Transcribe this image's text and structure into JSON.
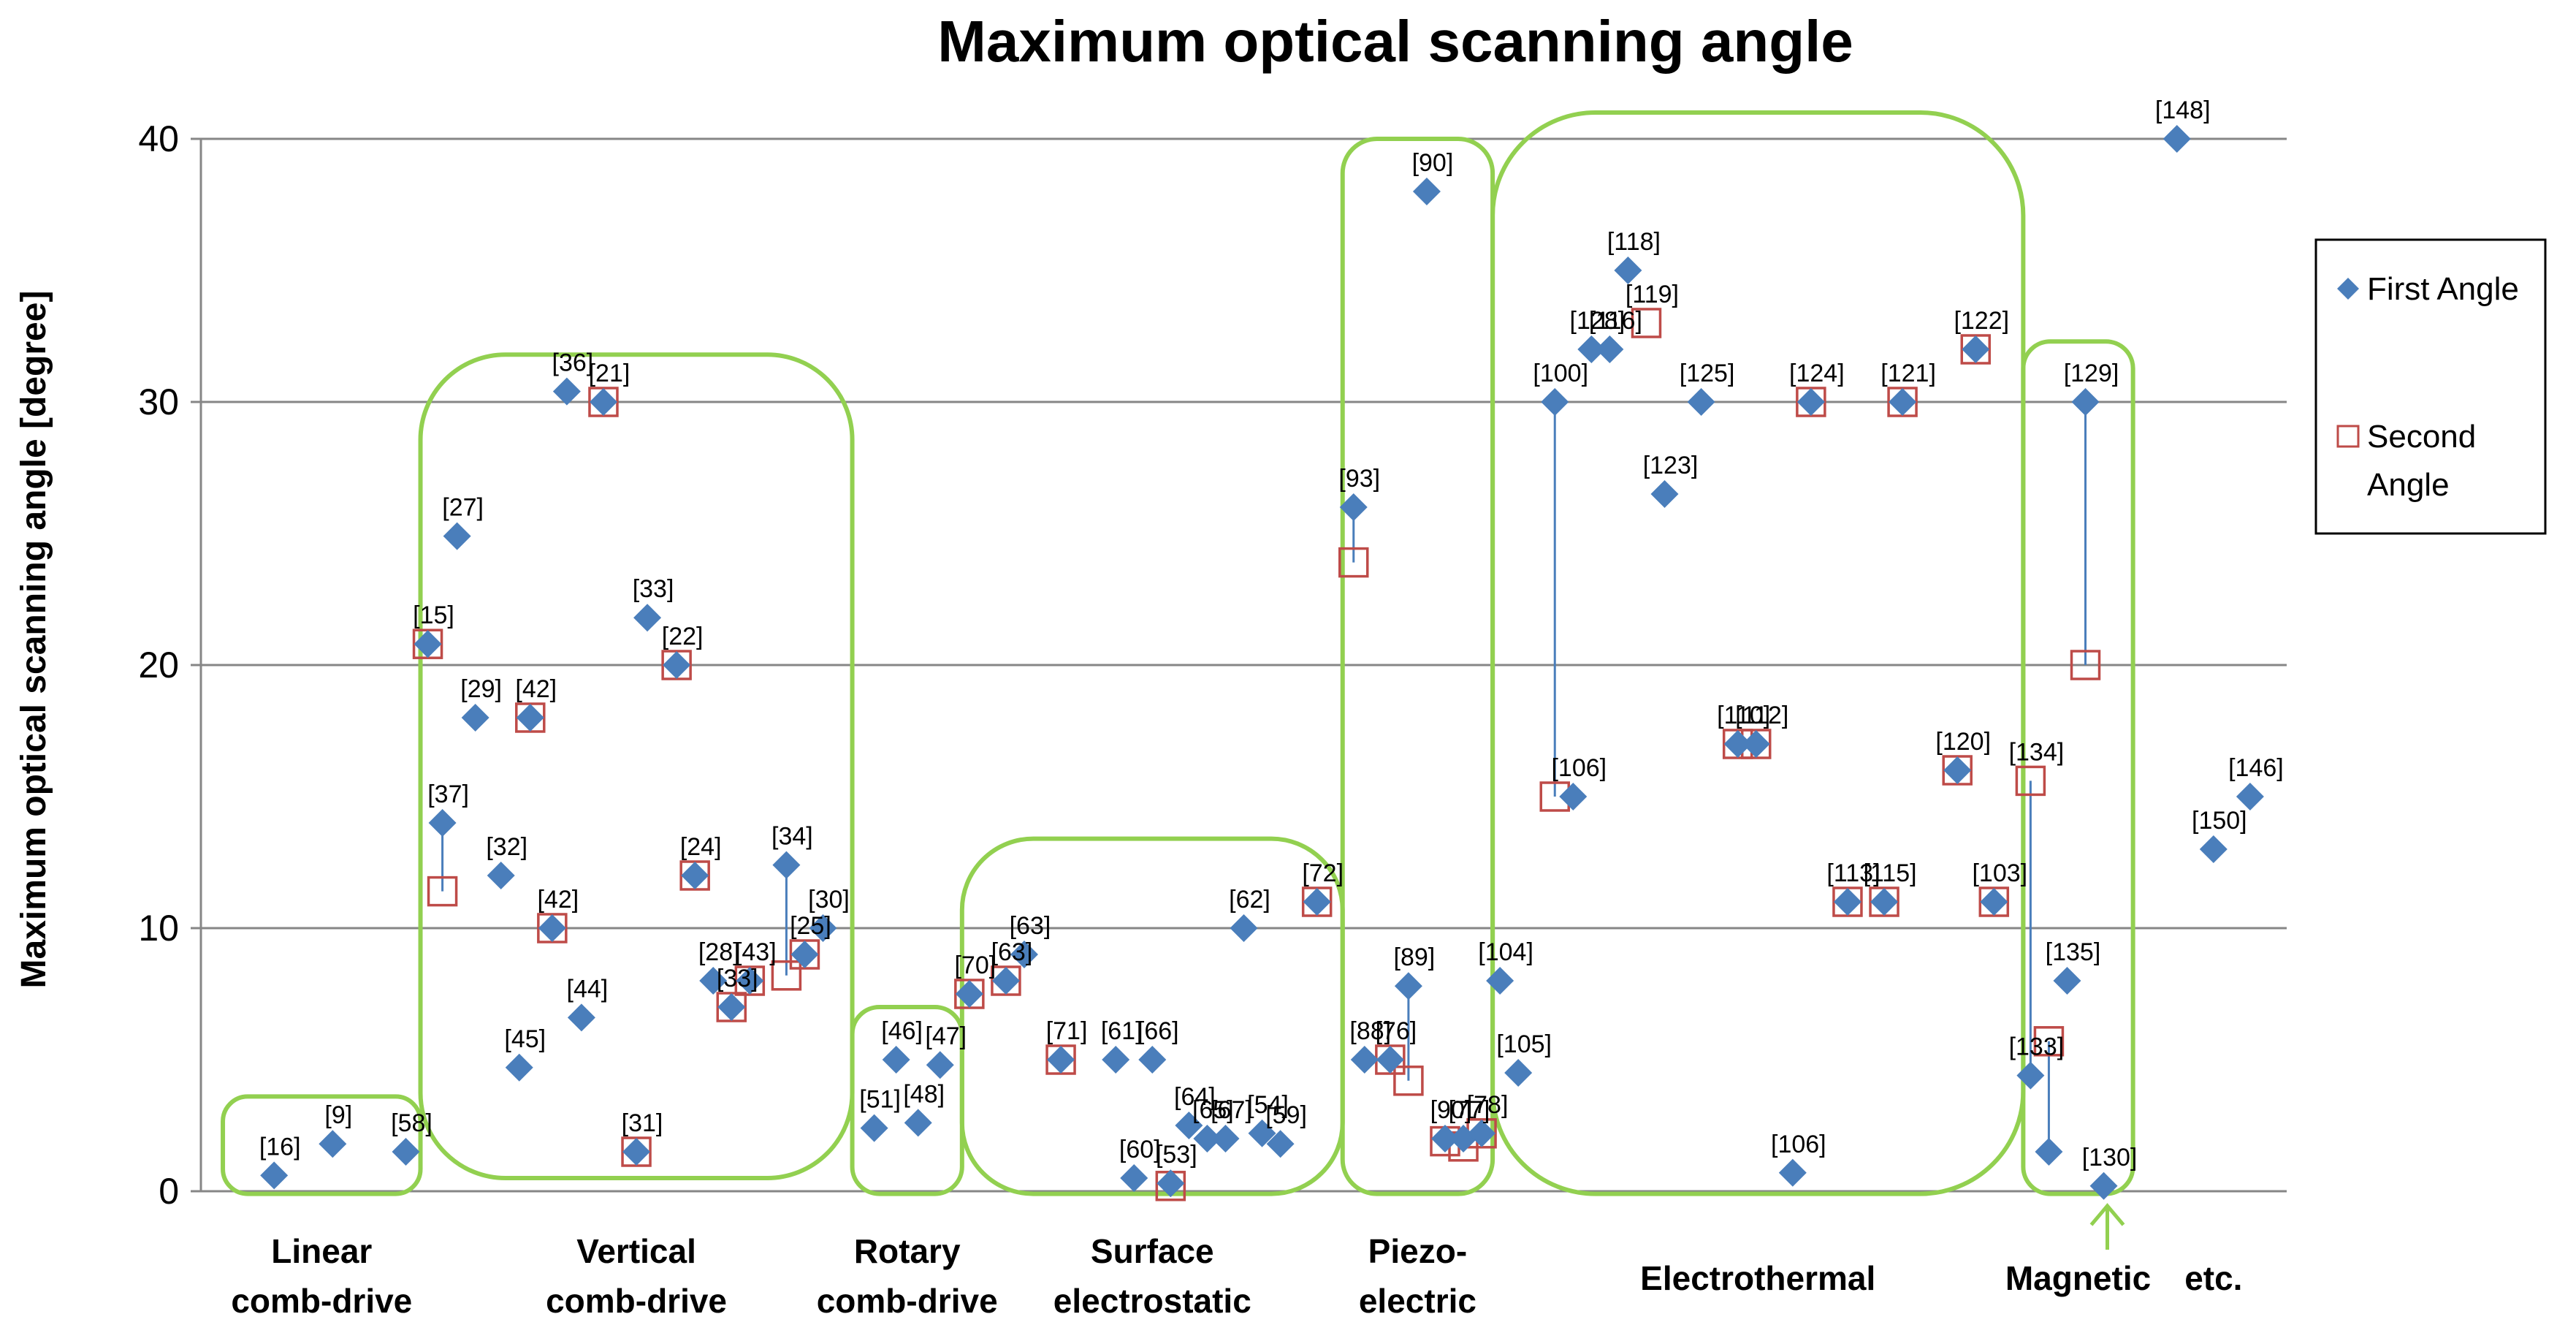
{
  "colors": {
    "first": "#4a7ebb",
    "second": "#be4b48",
    "group": "#92d050",
    "grid": "#868686",
    "line": "#4a7ebb"
  },
  "chart_data": {
    "type": "scatter",
    "title": "Maximum optical scanning angle",
    "xlabel": "",
    "ylabel": "Maximum optical scanning angle [degree]",
    "ylim": [
      0,
      40
    ],
    "yticks": [
      0,
      10,
      20,
      30,
      40
    ],
    "grid": true,
    "legend": {
      "position": "right",
      "entries": [
        {
          "name": "First Angle",
          "marker": "diamond"
        },
        {
          "name": "Second Angle",
          "marker": "square"
        }
      ]
    },
    "categories": [
      {
        "name": "Linear comb-drive",
        "lines": [
          "Linear",
          "comb-drive"
        ]
      },
      {
        "name": "Vertical comb-drive",
        "lines": [
          "Vertical",
          "comb-drive"
        ]
      },
      {
        "name": "Rotary comb-drive",
        "lines": [
          "Rotary",
          "comb-drive"
        ]
      },
      {
        "name": "Surface electrostatic",
        "lines": [
          "Surface",
          "electrostatic"
        ]
      },
      {
        "name": "Piezo-electric",
        "lines": [
          "Piezo-",
          "electric"
        ]
      },
      {
        "name": "Electrothermal",
        "lines": [
          "Electrothermal"
        ]
      },
      {
        "name": "Magnetic",
        "lines": [
          "Magnetic"
        ]
      },
      {
        "name": "etc.",
        "lines": [
          "etc."
        ]
      }
    ],
    "series": [
      {
        "name": "First Angle",
        "points": [
          {
            "x": 1.0,
            "y": 0.6,
            "label": "[16]"
          },
          {
            "x": 1.8,
            "y": 1.8,
            "label": "[9]"
          },
          {
            "x": 2.8,
            "y": 1.5,
            "label": "[58]"
          },
          {
            "x": 3.1,
            "y": 20.8,
            "label": "[15]"
          },
          {
            "x": 3.5,
            "y": 24.9,
            "label": "[27]"
          },
          {
            "x": 3.75,
            "y": 18.0,
            "label": "[29]"
          },
          {
            "x": 3.3,
            "y": 14.0,
            "label": "[37]"
          },
          {
            "x": 4.1,
            "y": 12.0,
            "label": "[32]"
          },
          {
            "x": 4.35,
            "y": 4.7,
            "label": "[45]"
          },
          {
            "x": 4.5,
            "y": 18.0,
            "label": "[42]"
          },
          {
            "x": 4.8,
            "y": 10.0,
            "label": "[42]"
          },
          {
            "x": 5.2,
            "y": 6.6,
            "label": "[44]"
          },
          {
            "x": 5.0,
            "y": 30.4,
            "label": "[36]"
          },
          {
            "x": 5.5,
            "y": 30.0,
            "label": "[21]"
          },
          {
            "x": 5.95,
            "y": 1.5,
            "label": "[31]"
          },
          {
            "x": 6.1,
            "y": 21.8,
            "label": "[33]"
          },
          {
            "x": 6.5,
            "y": 20.0,
            "label": "[22]"
          },
          {
            "x": 6.75,
            "y": 12.0,
            "label": "[24]"
          },
          {
            "x": 7.0,
            "y": 8.0,
            "label": "[28]"
          },
          {
            "x": 7.25,
            "y": 7.0,
            "label": "[33]"
          },
          {
            "x": 7.5,
            "y": 8.0,
            "label": "[43]"
          },
          {
            "x": 8.0,
            "y": 12.4,
            "label": "[34]"
          },
          {
            "x": 8.25,
            "y": 9.0,
            "label": "[25]"
          },
          {
            "x": 8.5,
            "y": 10.0,
            "label": "[30]"
          },
          {
            "x": 9.2,
            "y": 2.4,
            "label": "[51]"
          },
          {
            "x": 9.5,
            "y": 5.0,
            "label": "[46]"
          },
          {
            "x": 9.8,
            "y": 2.6,
            "label": "[48]"
          },
          {
            "x": 10.1,
            "y": 4.8,
            "label": "[47]"
          },
          {
            "x": 10.5,
            "y": 7.5,
            "label": "[70]"
          },
          {
            "x": 11.0,
            "y": 8.0,
            "label": "[63]"
          },
          {
            "x": 11.25,
            "y": 9.0,
            "label": "[63]"
          },
          {
            "x": 11.75,
            "y": 5.0,
            "label": "[71]"
          },
          {
            "x": 12.5,
            "y": 5.0,
            "label": "[61]"
          },
          {
            "x": 12.75,
            "y": 0.5,
            "label": "[60]"
          },
          {
            "x": 13.0,
            "y": 5.0,
            "label": "[66]"
          },
          {
            "x": 13.25,
            "y": 0.3,
            "label": "[53]"
          },
          {
            "x": 13.5,
            "y": 2.5,
            "label": "[64]"
          },
          {
            "x": 13.75,
            "y": 2.0,
            "label": "[65]"
          },
          {
            "x": 14.0,
            "y": 2.0,
            "label": "[67]"
          },
          {
            "x": 14.25,
            "y": 10.0,
            "label": "[62]"
          },
          {
            "x": 14.5,
            "y": 2.2,
            "label": "[54]"
          },
          {
            "x": 14.75,
            "y": 1.8,
            "label": "[59]"
          },
          {
            "x": 15.25,
            "y": 11.0,
            "label": "[72]"
          },
          {
            "x": 15.75,
            "y": 26.0,
            "label": "[93]"
          },
          {
            "x": 15.9,
            "y": 5.0,
            "label": "[88]"
          },
          {
            "x": 16.25,
            "y": 5.0,
            "label": "[76]"
          },
          {
            "x": 16.5,
            "y": 7.8,
            "label": "[89]"
          },
          {
            "x": 16.75,
            "y": 38.0,
            "label": "[90]"
          },
          {
            "x": 17.0,
            "y": 2.0,
            "label": "[90]"
          },
          {
            "x": 17.25,
            "y": 2.0,
            "label": "[77]"
          },
          {
            "x": 17.5,
            "y": 2.2,
            "label": "[78]"
          },
          {
            "x": 17.75,
            "y": 8.0,
            "label": "[104]"
          },
          {
            "x": 18.0,
            "y": 4.5,
            "label": "[105]"
          },
          {
            "x": 18.5,
            "y": 30.0,
            "label": "[100]"
          },
          {
            "x": 18.75,
            "y": 15.0,
            "label": "[106]"
          },
          {
            "x": 19.0,
            "y": 32.0,
            "label": "[128]"
          },
          {
            "x": 19.25,
            "y": 32.0,
            "label": "[116]"
          },
          {
            "x": 19.5,
            "y": 35.0,
            "label": "[118]"
          },
          {
            "x": 20.0,
            "y": 26.5,
            "label": "[123]"
          },
          {
            "x": 20.5,
            "y": 30.0,
            "label": "[125]"
          },
          {
            "x": 21.0,
            "y": 17.0,
            "label": "[110]"
          },
          {
            "x": 21.25,
            "y": 17.0,
            "label": "[112]"
          },
          {
            "x": 21.75,
            "y": 0.7,
            "label": "[106]"
          },
          {
            "x": 22.0,
            "y": 30.0,
            "label": "[124]"
          },
          {
            "x": 22.5,
            "y": 11.0,
            "label": "[113]"
          },
          {
            "x": 23.0,
            "y": 11.0,
            "label": "[115]"
          },
          {
            "x": 23.25,
            "y": 30.0,
            "label": "[121]"
          },
          {
            "x": 24.0,
            "y": 16.0,
            "label": "[120]"
          },
          {
            "x": 24.5,
            "y": 11.0,
            "label": "[103]"
          },
          {
            "x": 24.25,
            "y": 32.0,
            "label": "[122]"
          },
          {
            "x": 25.0,
            "y": 4.4,
            "label": "[133]"
          },
          {
            "x": 25.25,
            "y": 1.5,
            "label": ""
          },
          {
            "x": 25.5,
            "y": 8.0,
            "label": "[135]"
          },
          {
            "x": 25.75,
            "y": 30.0,
            "label": "[129]"
          },
          {
            "x": 26.0,
            "y": 0.2,
            "label": "[130]"
          },
          {
            "x": 27.0,
            "y": 40.0,
            "label": "[148]"
          },
          {
            "x": 27.5,
            "y": 13.0,
            "label": "[150]"
          },
          {
            "x": 28.0,
            "y": 15.0,
            "label": "[146]"
          }
        ]
      },
      {
        "name": "Second Angle",
        "points": [
          {
            "x": 3.1,
            "y": 20.8,
            "label": ""
          },
          {
            "x": 3.3,
            "y": 11.4,
            "label": ""
          },
          {
            "x": 4.5,
            "y": 18.0,
            "label": ""
          },
          {
            "x": 4.8,
            "y": 10.0,
            "label": ""
          },
          {
            "x": 5.5,
            "y": 30.0,
            "label": ""
          },
          {
            "x": 5.95,
            "y": 1.5,
            "label": ""
          },
          {
            "x": 6.5,
            "y": 20.0,
            "label": ""
          },
          {
            "x": 6.75,
            "y": 12.0,
            "label": ""
          },
          {
            "x": 7.25,
            "y": 7.0,
            "label": ""
          },
          {
            "x": 7.5,
            "y": 8.0,
            "label": ""
          },
          {
            "x": 8.0,
            "y": 8.2,
            "label": ""
          },
          {
            "x": 8.25,
            "y": 9.0,
            "label": ""
          },
          {
            "x": 10.5,
            "y": 7.5,
            "label": ""
          },
          {
            "x": 11.0,
            "y": 8.0,
            "label": ""
          },
          {
            "x": 11.75,
            "y": 5.0,
            "label": ""
          },
          {
            "x": 13.25,
            "y": 0.2,
            "label": ""
          },
          {
            "x": 15.25,
            "y": 11.0,
            "label": ""
          },
          {
            "x": 15.75,
            "y": 23.9,
            "label": ""
          },
          {
            "x": 16.25,
            "y": 5.0,
            "label": ""
          },
          {
            "x": 16.5,
            "y": 4.2,
            "label": ""
          },
          {
            "x": 17.0,
            "y": 1.9,
            "label": ""
          },
          {
            "x": 17.25,
            "y": 1.7,
            "label": ""
          },
          {
            "x": 17.5,
            "y": 2.2,
            "label": ""
          },
          {
            "x": 18.5,
            "y": 15.0,
            "label": ""
          },
          {
            "x": 19.75,
            "y": 33.0,
            "label": "[119]"
          },
          {
            "x": 21.0,
            "y": 17.0,
            "label": ""
          },
          {
            "x": 21.25,
            "y": 17.0,
            "label": ""
          },
          {
            "x": 22.0,
            "y": 30.0,
            "label": ""
          },
          {
            "x": 22.5,
            "y": 11.0,
            "label": ""
          },
          {
            "x": 23.0,
            "y": 11.0,
            "label": ""
          },
          {
            "x": 23.25,
            "y": 30.0,
            "label": ""
          },
          {
            "x": 24.0,
            "y": 16.0,
            "label": ""
          },
          {
            "x": 24.5,
            "y": 11.0,
            "label": ""
          },
          {
            "x": 24.25,
            "y": 32.0,
            "label": ""
          },
          {
            "x": 25.0,
            "y": 15.6,
            "label": "[134]"
          },
          {
            "x": 25.25,
            "y": 5.7,
            "label": ""
          },
          {
            "x": 25.75,
            "y": 20.0,
            "label": ""
          }
        ]
      }
    ],
    "connectors": [
      {
        "x": 3.3,
        "y1": 14.0,
        "y2": 11.4
      },
      {
        "x": 8.0,
        "y1": 12.4,
        "y2": 8.2
      },
      {
        "x": 15.75,
        "y1": 26.0,
        "y2": 23.9
      },
      {
        "x": 16.5,
        "y1": 7.8,
        "y2": 4.2
      },
      {
        "x": 18.5,
        "y1": 30.0,
        "y2": 15.0
      },
      {
        "x": 25.0,
        "y1": 15.6,
        "y2": 4.4
      },
      {
        "x": 25.25,
        "y1": 5.7,
        "y2": 1.5
      },
      {
        "x": 25.75,
        "y1": 30.0,
        "y2": 20.0
      }
    ],
    "groups": [
      {
        "name": "Linear comb-drive",
        "x0": 0.3,
        "x1": 3.0,
        "y0": -0.1,
        "y1": 3.6
      },
      {
        "name": "Vertical comb-drive",
        "x0": 3.0,
        "x1": 8.9,
        "y0": 0.5,
        "y1": 31.8
      },
      {
        "name": "Rotary comb-drive",
        "x0": 8.9,
        "x1": 10.4,
        "y0": -0.1,
        "y1": 7.0
      },
      {
        "name": "Surface electrostatic",
        "x0": 10.4,
        "x1": 15.6,
        "y0": -0.1,
        "y1": 13.4
      },
      {
        "name": "Piezo-electric",
        "x0": 15.6,
        "x1": 17.65,
        "y0": -0.1,
        "y1": 40.0
      },
      {
        "name": "Electrothermal",
        "x0": 17.65,
        "x1": 24.9,
        "y0": -0.1,
        "y1": 41.0
      },
      {
        "name": "Magnetic",
        "x0": 24.9,
        "x1": 26.4,
        "y0": -0.1,
        "y1": 32.3
      }
    ]
  }
}
